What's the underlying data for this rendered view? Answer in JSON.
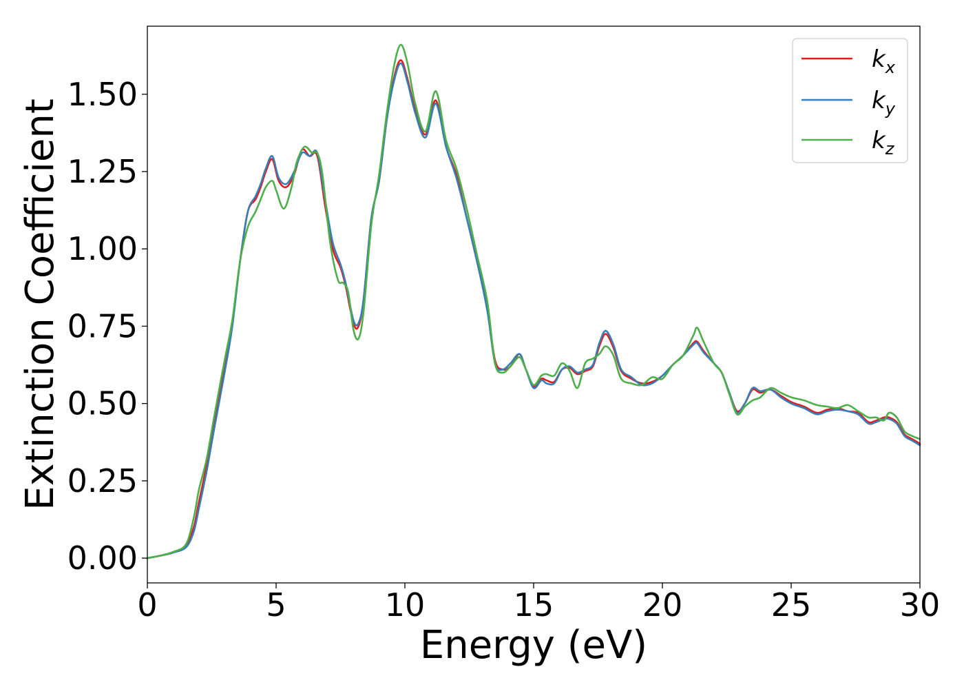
{
  "chart_data": {
    "type": "line",
    "title": "",
    "xlabel": "Energy (eV)",
    "ylabel": "Extinction Coefficient",
    "xlim": [
      0,
      30
    ],
    "ylim": [
      -0.08,
      1.72
    ],
    "xticks": [
      0,
      5,
      10,
      15,
      20,
      25,
      30
    ],
    "xtick_labels": [
      "0",
      "5",
      "10",
      "15",
      "20",
      "25",
      "30"
    ],
    "yticks": [
      0.0,
      0.25,
      0.5,
      0.75,
      1.0,
      1.25,
      1.5
    ],
    "ytick_labels": [
      "0.00",
      "0.25",
      "0.50",
      "0.75",
      "1.00",
      "1.25",
      "1.50"
    ],
    "grid": false,
    "legend": {
      "placement": "top-right"
    },
    "series": [
      {
        "name": "k_x",
        "label_main": "k",
        "label_sub": "x",
        "color": "#e41a1c",
        "x": [
          0,
          0.5,
          1.0,
          1.5,
          1.8,
          2.0,
          2.3,
          2.6,
          3.0,
          3.3,
          3.6,
          3.9,
          4.2,
          4.4,
          4.6,
          4.85,
          5.1,
          5.4,
          5.7,
          6.0,
          6.3,
          6.6,
          6.9,
          7.2,
          7.5,
          7.7,
          8.0,
          8.2,
          8.4,
          8.7,
          9.0,
          9.3,
          9.6,
          9.85,
          10.1,
          10.4,
          10.8,
          11.2,
          11.6,
          12.0,
          12.4,
          12.8,
          13.2,
          13.5,
          13.8,
          14.1,
          14.45,
          14.7,
          15.0,
          15.3,
          15.5,
          15.8,
          16.1,
          16.4,
          16.7,
          17.0,
          17.3,
          17.55,
          17.8,
          18.1,
          18.4,
          18.8,
          19.2,
          19.6,
          20.0,
          20.4,
          20.8,
          21.2,
          21.35,
          21.6,
          22.0,
          22.3,
          22.6,
          22.9,
          23.2,
          23.5,
          23.8,
          24.2,
          24.6,
          25.0,
          25.5,
          26.0,
          26.4,
          26.8,
          27.2,
          27.6,
          28.0,
          28.3,
          28.6,
          28.8,
          29.1,
          29.4,
          29.7,
          30.0
        ],
        "y": [
          0.0,
          0.008,
          0.018,
          0.04,
          0.1,
          0.18,
          0.3,
          0.44,
          0.62,
          0.76,
          0.96,
          1.12,
          1.16,
          1.2,
          1.25,
          1.29,
          1.22,
          1.2,
          1.24,
          1.32,
          1.3,
          1.3,
          1.14,
          1.0,
          0.94,
          0.88,
          0.76,
          0.75,
          0.84,
          1.1,
          1.22,
          1.42,
          1.56,
          1.61,
          1.55,
          1.45,
          1.37,
          1.48,
          1.33,
          1.24,
          1.1,
          0.96,
          0.81,
          0.64,
          0.61,
          0.62,
          0.66,
          0.61,
          0.555,
          0.58,
          0.575,
          0.57,
          0.61,
          0.615,
          0.595,
          0.605,
          0.62,
          0.685,
          0.725,
          0.68,
          0.605,
          0.58,
          0.565,
          0.57,
          0.59,
          0.625,
          0.655,
          0.695,
          0.7,
          0.67,
          0.63,
          0.6,
          0.535,
          0.475,
          0.5,
          0.545,
          0.535,
          0.545,
          0.525,
          0.505,
          0.49,
          0.47,
          0.48,
          0.485,
          0.475,
          0.47,
          0.44,
          0.445,
          0.455,
          0.455,
          0.44,
          0.4,
          0.385,
          0.37
        ]
      },
      {
        "name": "k_y",
        "label_main": "k",
        "label_sub": "y",
        "color": "#377eb8",
        "x": [
          0,
          0.5,
          1.0,
          1.5,
          1.8,
          2.0,
          2.3,
          2.6,
          3.0,
          3.3,
          3.6,
          3.9,
          4.2,
          4.4,
          4.6,
          4.85,
          5.1,
          5.4,
          5.7,
          6.0,
          6.3,
          6.6,
          6.9,
          7.2,
          7.5,
          7.7,
          8.0,
          8.2,
          8.4,
          8.7,
          9.0,
          9.3,
          9.6,
          9.85,
          10.1,
          10.4,
          10.8,
          11.2,
          11.6,
          12.0,
          12.4,
          12.8,
          13.2,
          13.5,
          13.8,
          14.1,
          14.45,
          14.7,
          15.0,
          15.3,
          15.5,
          15.8,
          16.1,
          16.4,
          16.7,
          17.0,
          17.3,
          17.55,
          17.8,
          18.1,
          18.4,
          18.8,
          19.2,
          19.6,
          20.0,
          20.4,
          20.8,
          21.2,
          21.35,
          21.6,
          22.0,
          22.3,
          22.6,
          22.9,
          23.2,
          23.5,
          23.8,
          24.2,
          24.6,
          25.0,
          25.5,
          26.0,
          26.4,
          26.8,
          27.2,
          27.6,
          28.0,
          28.3,
          28.6,
          28.8,
          29.1,
          29.4,
          29.7,
          30.0
        ],
        "y": [
          0.0,
          0.008,
          0.018,
          0.035,
          0.085,
          0.16,
          0.28,
          0.42,
          0.6,
          0.75,
          0.96,
          1.12,
          1.17,
          1.21,
          1.26,
          1.3,
          1.23,
          1.21,
          1.25,
          1.31,
          1.3,
          1.31,
          1.16,
          1.02,
          0.95,
          0.89,
          0.77,
          0.76,
          0.84,
          1.1,
          1.22,
          1.42,
          1.55,
          1.6,
          1.54,
          1.44,
          1.36,
          1.47,
          1.33,
          1.23,
          1.1,
          0.96,
          0.8,
          0.63,
          0.61,
          0.63,
          0.66,
          0.61,
          0.55,
          0.575,
          0.565,
          0.565,
          0.61,
          0.62,
          0.6,
          0.61,
          0.625,
          0.695,
          0.735,
          0.69,
          0.61,
          0.585,
          0.56,
          0.565,
          0.59,
          0.625,
          0.655,
          0.69,
          0.695,
          0.665,
          0.63,
          0.6,
          0.535,
          0.47,
          0.5,
          0.55,
          0.54,
          0.545,
          0.52,
          0.5,
          0.485,
          0.465,
          0.475,
          0.48,
          0.475,
          0.465,
          0.435,
          0.44,
          0.45,
          0.45,
          0.435,
          0.395,
          0.38,
          0.365
        ]
      },
      {
        "name": "k_z",
        "label_main": "k",
        "label_sub": "z",
        "color": "#4daf4a",
        "x": [
          0,
          0.5,
          1.0,
          1.5,
          1.8,
          2.0,
          2.3,
          2.6,
          3.0,
          3.3,
          3.6,
          3.9,
          4.2,
          4.4,
          4.6,
          4.85,
          5.0,
          5.3,
          5.6,
          5.8,
          6.1,
          6.4,
          6.6,
          6.8,
          7.1,
          7.4,
          7.6,
          7.8,
          8.0,
          8.2,
          8.4,
          8.7,
          9.0,
          9.3,
          9.6,
          9.85,
          10.1,
          10.4,
          10.8,
          11.2,
          11.6,
          12.0,
          12.4,
          12.8,
          13.2,
          13.5,
          13.8,
          14.1,
          14.45,
          14.7,
          15.0,
          15.3,
          15.5,
          15.8,
          16.1,
          16.4,
          16.7,
          17.0,
          17.3,
          17.55,
          17.8,
          18.1,
          18.4,
          18.8,
          19.2,
          19.6,
          20.0,
          20.4,
          20.8,
          21.2,
          21.35,
          21.6,
          22.0,
          22.3,
          22.6,
          22.9,
          23.2,
          23.5,
          23.8,
          24.2,
          24.6,
          25.0,
          25.5,
          26.0,
          26.4,
          26.8,
          27.2,
          27.6,
          28.0,
          28.3,
          28.6,
          28.8,
          29.1,
          29.4,
          29.7,
          30.0
        ],
        "y": [
          0.0,
          0.008,
          0.02,
          0.045,
          0.13,
          0.22,
          0.32,
          0.46,
          0.64,
          0.77,
          0.96,
          1.07,
          1.12,
          1.16,
          1.2,
          1.22,
          1.19,
          1.13,
          1.2,
          1.28,
          1.33,
          1.31,
          1.31,
          1.24,
          1.02,
          0.9,
          0.89,
          0.86,
          0.74,
          0.71,
          0.8,
          1.08,
          1.24,
          1.44,
          1.6,
          1.66,
          1.6,
          1.47,
          1.38,
          1.51,
          1.35,
          1.26,
          1.13,
          0.98,
          0.83,
          0.63,
          0.6,
          0.62,
          0.65,
          0.61,
          0.56,
          0.59,
          0.595,
          0.59,
          0.63,
          0.605,
          0.55,
          0.63,
          0.645,
          0.66,
          0.685,
          0.655,
          0.58,
          0.565,
          0.56,
          0.585,
          0.58,
          0.625,
          0.655,
          0.72,
          0.745,
          0.7,
          0.63,
          0.6,
          0.53,
          0.465,
          0.49,
          0.51,
          0.52,
          0.55,
          0.535,
          0.52,
          0.51,
          0.495,
          0.49,
          0.485,
          0.495,
          0.475,
          0.455,
          0.455,
          0.445,
          0.47,
          0.455,
          0.41,
          0.395,
          0.385
        ]
      }
    ]
  }
}
